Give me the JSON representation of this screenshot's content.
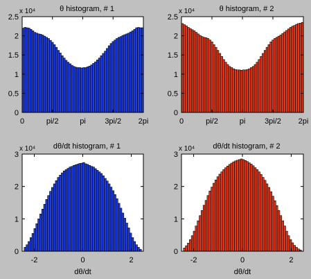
{
  "chart_data": [
    {
      "type": "bar",
      "title": "θ histogram, # 1",
      "xlabel": "",
      "ylabel": "",
      "y_scale_label": "x 10⁴",
      "xlim": [
        0,
        6.2832
      ],
      "ylim": [
        0,
        2.5
      ],
      "x_ticks": [
        0,
        1.5708,
        3.1416,
        4.7124,
        6.2832
      ],
      "x_tick_labels": [
        "0",
        "pi/2",
        "pi",
        "3pi/2",
        "2pi"
      ],
      "y_ticks": [
        0,
        0.5,
        1,
        1.5,
        2,
        2.5
      ],
      "y_tick_labels": [
        "0",
        "0.5",
        "1",
        "1.5",
        "2",
        "2.5"
      ],
      "bar_color": "#1f3ee0",
      "x_range": [
        0,
        6.2832
      ],
      "values": [
        2.2,
        2.22,
        2.21,
        2.2,
        2.17,
        2.13,
        2.09,
        2.07,
        2.05,
        2.04,
        2.02,
        1.99,
        1.96,
        1.93,
        1.88,
        1.83,
        1.77,
        1.7,
        1.62,
        1.55,
        1.48,
        1.42,
        1.36,
        1.31,
        1.27,
        1.23,
        1.2,
        1.18,
        1.17,
        1.17,
        1.16,
        1.17,
        1.17,
        1.19,
        1.21,
        1.24,
        1.28,
        1.32,
        1.37,
        1.42,
        1.48,
        1.54,
        1.6,
        1.67,
        1.74,
        1.8,
        1.85,
        1.89,
        1.93,
        1.96,
        1.98,
        2.01,
        2.03,
        2.05,
        2.07,
        2.1,
        2.13,
        2.17,
        2.21,
        2.22,
        2.21,
        2.21
      ]
    },
    {
      "type": "bar",
      "title": "θ histogram, # 2",
      "xlabel": "",
      "ylabel": "",
      "y_scale_label": "x 10⁴",
      "xlim": [
        0,
        6.2832
      ],
      "ylim": [
        0,
        2.5
      ],
      "x_ticks": [
        0,
        1.5708,
        3.1416,
        4.7124,
        6.2832
      ],
      "x_tick_labels": [
        "0",
        "pi/2",
        "pi",
        "3pi/2",
        "2pi"
      ],
      "y_ticks": [
        0,
        0.5,
        1,
        1.5,
        2,
        2.5
      ],
      "y_tick_labels": [
        "0",
        "0.5",
        "1",
        "1.5",
        "2",
        "2.5"
      ],
      "bar_color": "#e03a1a",
      "x_range": [
        0,
        6.2832
      ],
      "values": [
        2.32,
        2.29,
        2.26,
        2.22,
        2.19,
        2.16,
        2.13,
        2.09,
        2.05,
        2.01,
        1.98,
        1.96,
        1.95,
        1.93,
        1.89,
        1.84,
        1.77,
        1.7,
        1.62,
        1.54,
        1.46,
        1.38,
        1.31,
        1.25,
        1.2,
        1.17,
        1.14,
        1.12,
        1.11,
        1.11,
        1.1,
        1.11,
        1.11,
        1.12,
        1.14,
        1.17,
        1.2,
        1.25,
        1.31,
        1.38,
        1.46,
        1.54,
        1.62,
        1.7,
        1.77,
        1.84,
        1.89,
        1.93,
        1.96,
        1.99,
        2.02,
        2.06,
        2.1,
        2.14,
        2.18,
        2.22,
        2.25,
        2.27,
        2.3,
        2.32,
        2.33,
        2.35
      ]
    },
    {
      "type": "bar",
      "title": "dθ/dt histogram, # 1",
      "xlabel": "dθ/dt",
      "ylabel": "",
      "y_scale_label": "x 10⁴",
      "xlim": [
        -2.5,
        2.5
      ],
      "ylim": [
        0,
        3
      ],
      "x_ticks": [
        -2,
        0,
        2
      ],
      "x_tick_labels": [
        "-2",
        "0",
        "2"
      ],
      "y_ticks": [
        0,
        1,
        2,
        3
      ],
      "y_tick_labels": [
        "0",
        "1",
        "2",
        "3"
      ],
      "bar_color": "#1f3ee0",
      "x_range": [
        -2.42,
        2.42
      ],
      "values": [
        0.12,
        0.2,
        0.3,
        0.42,
        0.55,
        0.7,
        0.85,
        1.0,
        1.15,
        1.3,
        1.45,
        1.6,
        1.72,
        1.85,
        1.97,
        2.08,
        2.18,
        2.28,
        2.35,
        2.42,
        2.48,
        2.52,
        2.56,
        2.6,
        2.62,
        2.65,
        2.67,
        2.69,
        2.71,
        2.72,
        2.74,
        2.7,
        2.68,
        2.65,
        2.62,
        2.6,
        2.55,
        2.5,
        2.45,
        2.4,
        2.33,
        2.25,
        2.17,
        2.08,
        1.98,
        1.87,
        1.75,
        1.62,
        1.48,
        1.33,
        1.18,
        1.02,
        0.87,
        0.72,
        0.56,
        0.42,
        0.3,
        0.2,
        0.12,
        0.06
      ]
    },
    {
      "type": "bar",
      "title": "dθ/dt histogram, # 2",
      "xlabel": "dθ/dt",
      "ylabel": "",
      "y_scale_label": "x 10⁴",
      "xlim": [
        -2.5,
        2.5
      ],
      "ylim": [
        0,
        3
      ],
      "x_ticks": [
        -2,
        0,
        2
      ],
      "x_tick_labels": [
        "-2",
        "0",
        "2"
      ],
      "y_ticks": [
        0,
        1,
        2,
        3
      ],
      "y_tick_labels": [
        "0",
        "1",
        "2",
        "3"
      ],
      "bar_color": "#e03a1a",
      "x_range": [
        -2.42,
        2.42
      ],
      "values": [
        0.1,
        0.17,
        0.25,
        0.36,
        0.48,
        0.62,
        0.78,
        0.94,
        1.1,
        1.26,
        1.42,
        1.57,
        1.72,
        1.86,
        1.98,
        2.1,
        2.2,
        2.3,
        2.38,
        2.45,
        2.52,
        2.58,
        2.63,
        2.68,
        2.72,
        2.76,
        2.79,
        2.81,
        2.83,
        2.85,
        2.83,
        2.8,
        2.77,
        2.73,
        2.69,
        2.64,
        2.58,
        2.52,
        2.45,
        2.37,
        2.28,
        2.19,
        2.08,
        1.97,
        1.84,
        1.7,
        1.56,
        1.41,
        1.26,
        1.1,
        0.94,
        0.78,
        0.62,
        0.48,
        0.36,
        0.26,
        0.18,
        0.12,
        0.07,
        0.04
      ]
    }
  ]
}
